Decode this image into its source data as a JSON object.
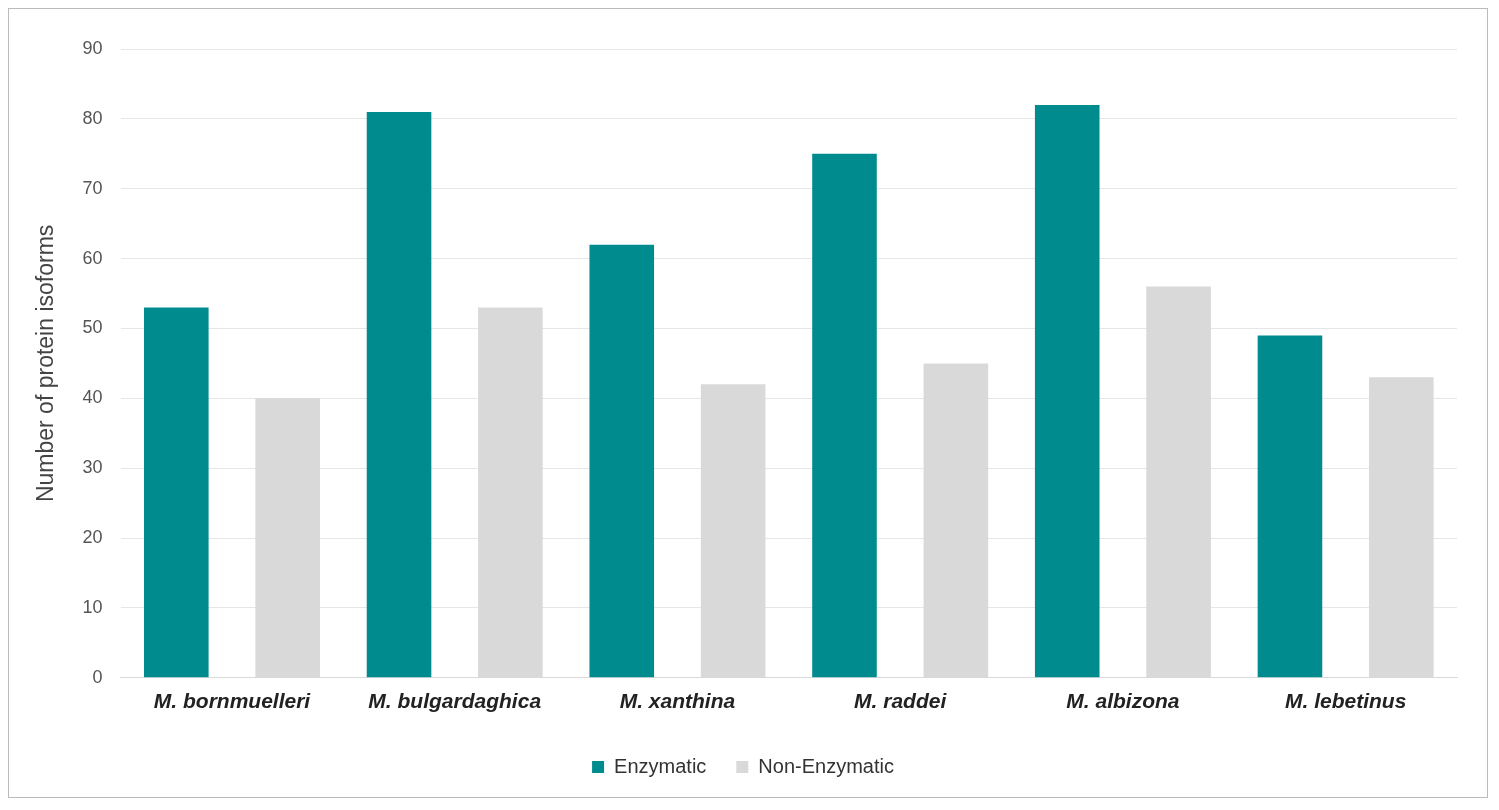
{
  "chart_data": {
    "type": "bar",
    "ylabel": "Number of protein isoforms",
    "categories": [
      "M. bornmuelleri",
      "M. bulgardaghica",
      "M. xanthina",
      "M. raddei",
      "M. albizona",
      "M. lebetinus"
    ],
    "series": [
      {
        "name": "Enzymatic",
        "color": "#008b8f",
        "values": [
          53,
          81,
          62,
          75,
          82,
          49
        ]
      },
      {
        "name": "Non-Enzymatic",
        "color": "#d9d9d9",
        "values": [
          40,
          53,
          42,
          45,
          56,
          43
        ]
      }
    ],
    "ylim": [
      0,
      90
    ],
    "yticks": [
      0,
      10,
      20,
      30,
      40,
      50,
      60,
      70,
      80,
      90
    ],
    "grid": "y",
    "legend": "bottom"
  }
}
